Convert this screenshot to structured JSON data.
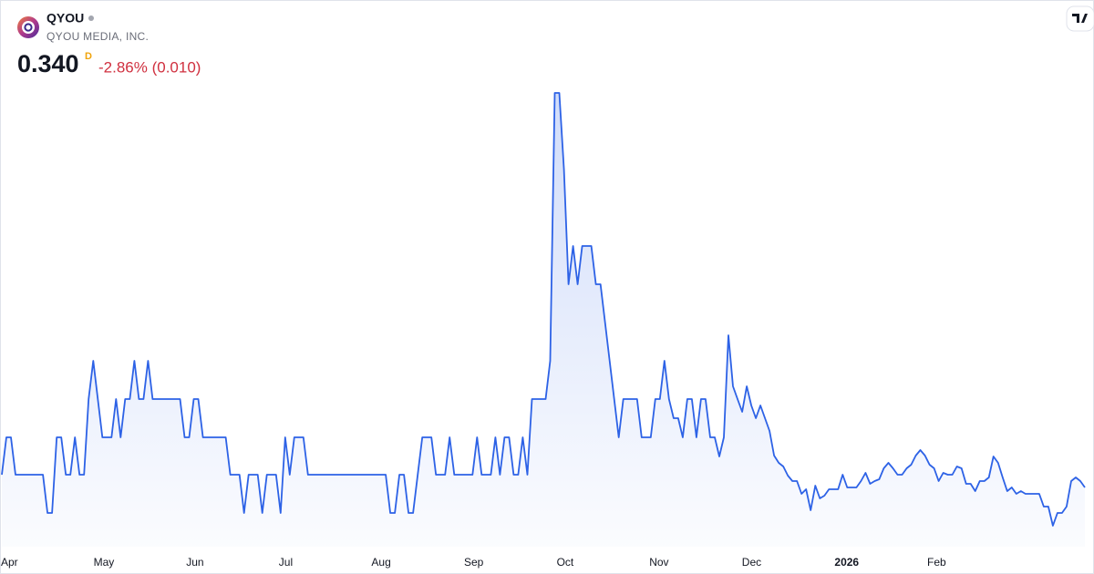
{
  "header": {
    "symbol": "QYOU",
    "company": "QYOU MEDIA, INC.",
    "price": "0.340",
    "interval": "D",
    "change": "-2.86% (0.010)"
  },
  "chart_data": {
    "type": "area",
    "color": "#2d62e6",
    "x_labels": [
      "Apr",
      "May",
      "Jun",
      "Jul",
      "Aug",
      "Sep",
      "Oct",
      "Nov",
      "Dec",
      "2026",
      "Feb"
    ],
    "ylim": [
      0.26,
      0.79
    ],
    "values": [
      0.354,
      0.395,
      0.395,
      0.354,
      0.354,
      0.354,
      0.354,
      0.354,
      0.354,
      0.354,
      0.312,
      0.312,
      0.395,
      0.395,
      0.354,
      0.354,
      0.395,
      0.354,
      0.354,
      0.437,
      0.479,
      0.437,
      0.395,
      0.395,
      0.395,
      0.437,
      0.395,
      0.437,
      0.437,
      0.479,
      0.437,
      0.437,
      0.479,
      0.437,
      0.437,
      0.437,
      0.437,
      0.437,
      0.437,
      0.437,
      0.395,
      0.395,
      0.437,
      0.437,
      0.395,
      0.395,
      0.395,
      0.395,
      0.395,
      0.395,
      0.354,
      0.354,
      0.354,
      0.312,
      0.354,
      0.354,
      0.354,
      0.312,
      0.354,
      0.354,
      0.354,
      0.312,
      0.395,
      0.354,
      0.395,
      0.395,
      0.395,
      0.354,
      0.354,
      0.354,
      0.354,
      0.354,
      0.354,
      0.354,
      0.354,
      0.354,
      0.354,
      0.354,
      0.354,
      0.354,
      0.354,
      0.354,
      0.354,
      0.354,
      0.354,
      0.312,
      0.312,
      0.354,
      0.354,
      0.312,
      0.312,
      0.354,
      0.395,
      0.395,
      0.395,
      0.354,
      0.354,
      0.354,
      0.395,
      0.354,
      0.354,
      0.354,
      0.354,
      0.354,
      0.395,
      0.354,
      0.354,
      0.354,
      0.395,
      0.354,
      0.395,
      0.395,
      0.354,
      0.354,
      0.395,
      0.354,
      0.437,
      0.437,
      0.437,
      0.437,
      0.479,
      0.773,
      0.773,
      0.689,
      0.563,
      0.605,
      0.563,
      0.605,
      0.605,
      0.605,
      0.563,
      0.563,
      0.521,
      0.479,
      0.437,
      0.395,
      0.437,
      0.437,
      0.437,
      0.437,
      0.395,
      0.395,
      0.395,
      0.437,
      0.437,
      0.479,
      0.437,
      0.416,
      0.416,
      0.395,
      0.437,
      0.437,
      0.395,
      0.437,
      0.437,
      0.395,
      0.395,
      0.374,
      0.395,
      0.507,
      0.451,
      0.437,
      0.423,
      0.451,
      0.43,
      0.416,
      0.43,
      0.416,
      0.402,
      0.375,
      0.367,
      0.363,
      0.353,
      0.347,
      0.347,
      0.333,
      0.338,
      0.315,
      0.342,
      0.328,
      0.331,
      0.338,
      0.338,
      0.338,
      0.354,
      0.34,
      0.34,
      0.34,
      0.347,
      0.356,
      0.344,
      0.347,
      0.349,
      0.361,
      0.367,
      0.361,
      0.354,
      0.354,
      0.361,
      0.365,
      0.375,
      0.381,
      0.375,
      0.365,
      0.361,
      0.347,
      0.356,
      0.354,
      0.354,
      0.363,
      0.361,
      0.344,
      0.344,
      0.336,
      0.347,
      0.347,
      0.351,
      0.374,
      0.367,
      0.351,
      0.336,
      0.34,
      0.333,
      0.336,
      0.333,
      0.333,
      0.333,
      0.333,
      0.319,
      0.319,
      0.298,
      0.312,
      0.312,
      0.319,
      0.347,
      0.351,
      0.347,
      0.34
    ]
  }
}
